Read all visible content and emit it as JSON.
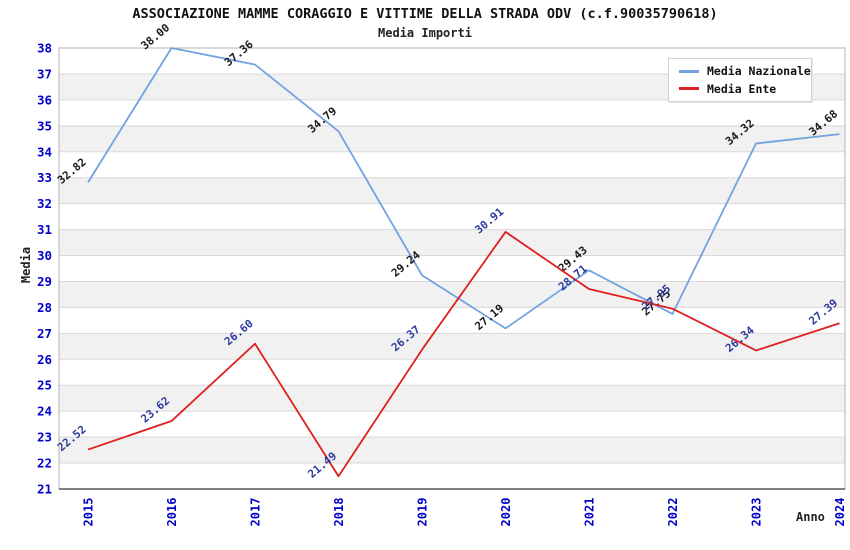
{
  "chart_data": {
    "type": "line",
    "title": "ASSOCIAZIONE MAMME CORAGGIO E VITTIME DELLA STRADA ODV (c.f.90035790618)",
    "subtitle": "Media Importi",
    "xlabel": "Anno",
    "ylabel": "Media",
    "categories": [
      "2015",
      "2016",
      "2017",
      "2018",
      "2019",
      "2020",
      "2021",
      "2022",
      "2023",
      "2024"
    ],
    "ylim": [
      21,
      38
    ],
    "ytick_step": 1,
    "grid": true,
    "legend_position": "top-right",
    "series": [
      {
        "name": "Media Nazionale",
        "color": "#73a3de",
        "label_color": "#1a1a1a",
        "values": [
          32.82,
          38.0,
          37.36,
          34.79,
          29.24,
          27.19,
          29.43,
          27.75,
          34.32,
          34.68
        ]
      },
      {
        "name": "Media Ente",
        "color": "#e02020",
        "label_color": "#2f3a9e",
        "values": [
          22.52,
          23.62,
          26.6,
          21.49,
          26.37,
          30.91,
          28.71,
          27.95,
          26.34,
          27.39
        ]
      }
    ],
    "colors": {
      "axis_tick_labels": "#0000cc",
      "grid_line": "#d9d9d9",
      "band_gray": "#f1f1f1",
      "band_white": "#ffffff",
      "plot_border": "#b5b5b5",
      "x_axis_line": "#555555",
      "title_text": "#111111"
    }
  }
}
